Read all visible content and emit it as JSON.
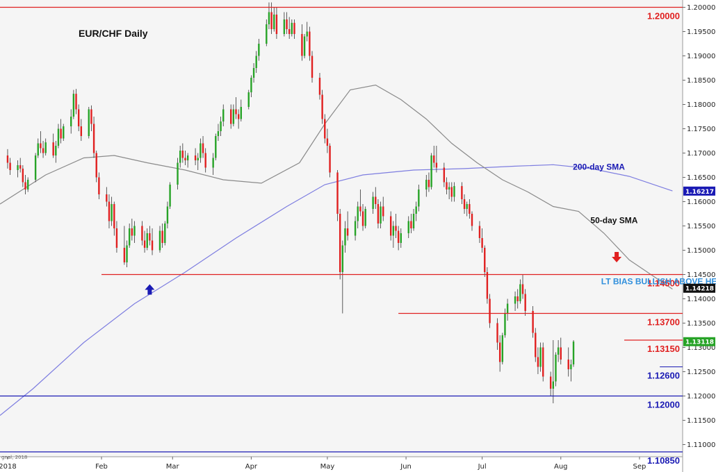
{
  "chart_data": {
    "type": "candlestick",
    "title": "EUR/CHF Daily",
    "credit": "gnal, 2018",
    "x_tick_labels": [
      "2018",
      "Feb",
      "Mar",
      "Apr",
      "May",
      "Jun",
      "Jul",
      "Aug",
      "Sep"
    ],
    "x_tick_days": [
      0,
      37,
      65,
      96,
      126,
      157,
      187,
      218,
      249
    ],
    "y_tick_labels": [
      "1.20000",
      "1.19500",
      "1.19000",
      "1.18500",
      "1.18000",
      "1.17500",
      "1.17000",
      "1.16500",
      "1.16000",
      "1.15500",
      "1.15000",
      "1.14500",
      "1.14000",
      "1.13500",
      "1.13000",
      "1.12500",
      "1.12000",
      "1.11500",
      "1.11000"
    ],
    "ylim": [
      1.1075,
      1.2015
    ],
    "grid": false,
    "colors": {
      "up": "#27a327",
      "down": "#e02020",
      "level_red": "#e02020",
      "level_blue": "#1a1ab4",
      "sma50": "#8a8a8a",
      "sma200": "#7d7de0",
      "bias_text": "#2f8fdc"
    },
    "horizontal_levels": [
      {
        "value": 1.2,
        "label": "1.20000",
        "color": "red",
        "from_day": -3
      },
      {
        "value": 1.145,
        "label": "1.14500",
        "color": "red",
        "from_day": 37
      },
      {
        "value": 1.137,
        "label": "1.13700",
        "color": "red",
        "from_day": 154
      },
      {
        "value": 1.1315,
        "label": "1.13150",
        "color": "red",
        "from_day": 243
      },
      {
        "value": 1.126,
        "label": "1.12600",
        "color": "blue",
        "from_day": 257,
        "thin": true
      },
      {
        "value": 1.12,
        "label": "1.12000",
        "color": "blue",
        "from_day": -3
      },
      {
        "value": 1.1085,
        "label": "1.10850",
        "color": "blue",
        "from_day": -3
      }
    ],
    "price_badges": [
      {
        "value": 1.16217,
        "label": "1.16217",
        "color": "#1a1ab4"
      },
      {
        "value": 1.14218,
        "label": "1.14218",
        "color": "#111111"
      },
      {
        "value": 1.13118,
        "label": "1.13118",
        "color": "#27a327"
      }
    ],
    "annotations": [
      {
        "text": "200-day SMA",
        "day": 233,
        "value": 1.1666,
        "color": "blue"
      },
      {
        "text": "50-day SMA",
        "day": 239,
        "value": 1.1556,
        "color": "dark"
      },
      {
        "text": "LT BIAS BULLISH ABOVE HERE",
        "day": 259,
        "value": 1.143,
        "color": "bias"
      }
    ],
    "arrows": [
      {
        "direction": "up",
        "day": 56,
        "value": 1.143,
        "color": "#1a1ab4"
      },
      {
        "direction": "down",
        "day": 240,
        "value": 1.1475,
        "color": "#e02020"
      }
    ],
    "sma200": [
      [
        -3,
        1.116
      ],
      [
        10,
        1.1215
      ],
      [
        30,
        1.131
      ],
      [
        50,
        1.139
      ],
      [
        70,
        1.1455
      ],
      [
        90,
        1.1525
      ],
      [
        110,
        1.159
      ],
      [
        125,
        1.1635
      ],
      [
        140,
        1.1655
      ],
      [
        160,
        1.1665
      ],
      [
        180,
        1.1668
      ],
      [
        200,
        1.1673
      ],
      [
        215,
        1.1676
      ],
      [
        230,
        1.1668
      ],
      [
        245,
        1.1652
      ],
      [
        262,
        1.1622
      ]
    ],
    "sma50": [
      [
        -3,
        1.1595
      ],
      [
        15,
        1.1655
      ],
      [
        30,
        1.169
      ],
      [
        42,
        1.1695
      ],
      [
        55,
        1.168
      ],
      [
        70,
        1.1665
      ],
      [
        85,
        1.1645
      ],
      [
        100,
        1.1638
      ],
      [
        115,
        1.168
      ],
      [
        125,
        1.176
      ],
      [
        135,
        1.183
      ],
      [
        145,
        1.184
      ],
      [
        155,
        1.181
      ],
      [
        165,
        1.177
      ],
      [
        175,
        1.172
      ],
      [
        185,
        1.168
      ],
      [
        195,
        1.1645
      ],
      [
        205,
        1.162
      ],
      [
        215,
        1.159
      ],
      [
        225,
        1.158
      ],
      [
        235,
        1.1535
      ],
      [
        245,
        1.148
      ],
      [
        262,
        1.142
      ]
    ],
    "candles": [
      [
        0,
        1.1695,
        1.1708,
        1.1668,
        1.168
      ],
      [
        1,
        1.168,
        1.169,
        1.1655,
        1.1665
      ],
      [
        4,
        1.1665,
        1.1685,
        1.165,
        1.1675
      ],
      [
        5,
        1.1675,
        1.169,
        1.166,
        1.1668
      ],
      [
        6,
        1.1668,
        1.1675,
        1.163,
        1.164
      ],
      [
        7,
        1.164,
        1.1655,
        1.1615,
        1.1625
      ],
      [
        8,
        1.1625,
        1.165,
        1.162,
        1.1645
      ],
      [
        11,
        1.1645,
        1.17,
        1.164,
        1.1695
      ],
      [
        12,
        1.1695,
        1.173,
        1.169,
        1.172
      ],
      [
        13,
        1.172,
        1.1745,
        1.17,
        1.171
      ],
      [
        14,
        1.171,
        1.1725,
        1.169,
        1.17
      ],
      [
        15,
        1.17,
        1.173,
        1.1695,
        1.1722
      ],
      [
        18,
        1.1722,
        1.174,
        1.169,
        1.1695
      ],
      [
        19,
        1.1695,
        1.1725,
        1.168,
        1.1715
      ],
      [
        20,
        1.1715,
        1.176,
        1.171,
        1.175
      ],
      [
        21,
        1.175,
        1.177,
        1.172,
        1.173
      ],
      [
        22,
        1.173,
        1.176,
        1.1725,
        1.1755
      ],
      [
        25,
        1.1755,
        1.179,
        1.174,
        1.1775
      ],
      [
        26,
        1.1775,
        1.183,
        1.177,
        1.1822
      ],
      [
        27,
        1.1822,
        1.1832,
        1.178,
        1.179
      ],
      [
        28,
        1.179,
        1.18,
        1.1745,
        1.1755
      ],
      [
        29,
        1.1755,
        1.177,
        1.1725,
        1.1735
      ],
      [
        32,
        1.1735,
        1.1795,
        1.173,
        1.179
      ],
      [
        33,
        1.179,
        1.1798,
        1.1745,
        1.176
      ],
      [
        34,
        1.176,
        1.1775,
        1.169,
        1.17
      ],
      [
        35,
        1.17,
        1.1705,
        1.164,
        1.165
      ],
      [
        36,
        1.165,
        1.166,
        1.1605,
        1.1615
      ],
      [
        39,
        1.1615,
        1.163,
        1.159,
        1.16
      ],
      [
        40,
        1.16,
        1.1615,
        1.1545,
        1.156
      ],
      [
        41,
        1.156,
        1.161,
        1.155,
        1.1595
      ],
      [
        42,
        1.1595,
        1.16,
        1.153,
        1.1545
      ],
      [
        43,
        1.1545,
        1.156,
        1.1495,
        1.1505
      ],
      [
        46,
        1.1505,
        1.155,
        1.147,
        1.1475
      ],
      [
        47,
        1.1475,
        1.152,
        1.1465,
        1.151
      ],
      [
        48,
        1.151,
        1.1555,
        1.1505,
        1.1545
      ],
      [
        49,
        1.1545,
        1.1565,
        1.152,
        1.153
      ],
      [
        50,
        1.153,
        1.156,
        1.1515,
        1.155
      ],
      [
        53,
        1.155,
        1.156,
        1.151,
        1.152
      ],
      [
        54,
        1.152,
        1.154,
        1.1495,
        1.1505
      ],
      [
        55,
        1.1505,
        1.1545,
        1.15,
        1.1535
      ],
      [
        56,
        1.1535,
        1.155,
        1.151,
        1.152
      ],
      [
        57,
        1.152,
        1.1545,
        1.149,
        1.15
      ],
      [
        60,
        1.15,
        1.155,
        1.1495,
        1.154
      ],
      [
        61,
        1.154,
        1.1555,
        1.1505,
        1.1515
      ],
      [
        62,
        1.1515,
        1.156,
        1.151,
        1.1555
      ],
      [
        63,
        1.1555,
        1.16,
        1.1545,
        1.159
      ],
      [
        64,
        1.159,
        1.164,
        1.1585,
        1.1635
      ],
      [
        67,
        1.1635,
        1.169,
        1.1625,
        1.168
      ],
      [
        68,
        1.168,
        1.1715,
        1.167,
        1.1705
      ],
      [
        69,
        1.1705,
        1.172,
        1.168,
        1.169
      ],
      [
        70,
        1.169,
        1.1705,
        1.1675,
        1.1685
      ],
      [
        71,
        1.1685,
        1.17,
        1.167,
        1.1695
      ],
      [
        74,
        1.1695,
        1.171,
        1.1675,
        1.1685
      ],
      [
        75,
        1.1685,
        1.17,
        1.1665,
        1.169
      ],
      [
        76,
        1.169,
        1.173,
        1.168,
        1.172
      ],
      [
        77,
        1.172,
        1.1735,
        1.169,
        1.17
      ],
      [
        78,
        1.17,
        1.171,
        1.166,
        1.167
      ],
      [
        81,
        1.167,
        1.17,
        1.1655,
        1.169
      ],
      [
        82,
        1.169,
        1.174,
        1.1685,
        1.1735
      ],
      [
        83,
        1.1735,
        1.176,
        1.1725,
        1.1745
      ],
      [
        84,
        1.1745,
        1.1775,
        1.1735,
        1.1765
      ],
      [
        85,
        1.1765,
        1.18,
        1.1755,
        1.179
      ],
      [
        88,
        1.179,
        1.18,
        1.175,
        1.176
      ],
      [
        89,
        1.176,
        1.18,
        1.1755,
        1.179
      ],
      [
        90,
        1.179,
        1.1815,
        1.177,
        1.178
      ],
      [
        91,
        1.178,
        1.179,
        1.175,
        1.177
      ],
      [
        92,
        1.177,
        1.181,
        1.1765,
        1.1795
      ],
      [
        95,
        1.1795,
        1.183,
        1.179,
        1.1825
      ],
      [
        96,
        1.1825,
        1.186,
        1.1815,
        1.1855
      ],
      [
        97,
        1.1855,
        1.1885,
        1.1845,
        1.1875
      ],
      [
        98,
        1.1875,
        1.191,
        1.1865,
        1.19
      ],
      [
        99,
        1.19,
        1.1935,
        1.189,
        1.1925
      ],
      [
        102,
        1.1925,
        1.1975,
        1.192,
        1.1965
      ],
      [
        103,
        1.1965,
        1.201,
        1.1955,
        1.199
      ],
      [
        104,
        1.199,
        1.201,
        1.1945,
        1.1955
      ],
      [
        105,
        1.1955,
        1.2,
        1.195,
        1.1985
      ],
      [
        106,
        1.1985,
        1.2,
        1.1935,
        1.1945
      ],
      [
        109,
        1.1945,
        1.199,
        1.194,
        1.1975
      ],
      [
        110,
        1.1975,
        1.199,
        1.1945,
        1.1955
      ],
      [
        111,
        1.1955,
        1.198,
        1.1935,
        1.1945
      ],
      [
        112,
        1.1945,
        1.1975,
        1.194,
        1.1968
      ],
      [
        113,
        1.1968,
        1.1975,
        1.1935,
        1.1945
      ],
      [
        116,
        1.1945,
        1.1965,
        1.189,
        1.19
      ],
      [
        117,
        1.19,
        1.1945,
        1.1895,
        1.194
      ],
      [
        118,
        1.194,
        1.197,
        1.193,
        1.195
      ],
      [
        119,
        1.195,
        1.196,
        1.189,
        1.19
      ],
      [
        120,
        1.19,
        1.191,
        1.1845,
        1.1855
      ],
      [
        123,
        1.1855,
        1.1865,
        1.181,
        1.182
      ],
      [
        124,
        1.182,
        1.183,
        1.176,
        1.177
      ],
      [
        125,
        1.177,
        1.178,
        1.172,
        1.173
      ],
      [
        126,
        1.173,
        1.175,
        1.17,
        1.1715
      ],
      [
        127,
        1.1715,
        1.172,
        1.165,
        1.166
      ],
      [
        130,
        1.166,
        1.1665,
        1.156,
        1.1575
      ],
      [
        131,
        1.1575,
        1.1585,
        1.144,
        1.1455
      ],
      [
        132,
        1.1455,
        1.152,
        1.137,
        1.151
      ],
      [
        133,
        1.151,
        1.156,
        1.1495,
        1.1545
      ],
      [
        134,
        1.1545,
        1.158,
        1.152,
        1.153
      ],
      [
        137,
        1.153,
        1.157,
        1.152,
        1.156
      ],
      [
        138,
        1.156,
        1.16,
        1.1545,
        1.159
      ],
      [
        139,
        1.159,
        1.1625,
        1.157,
        1.158
      ],
      [
        140,
        1.158,
        1.1595,
        1.154,
        1.155
      ],
      [
        141,
        1.155,
        1.159,
        1.1545,
        1.1585
      ],
      [
        144,
        1.1585,
        1.162,
        1.1575,
        1.161
      ],
      [
        145,
        1.161,
        1.163,
        1.1585,
        1.1595
      ],
      [
        146,
        1.1595,
        1.1605,
        1.1545,
        1.1555
      ],
      [
        147,
        1.1555,
        1.16,
        1.1545,
        1.159
      ],
      [
        148,
        1.159,
        1.161,
        1.156,
        1.157
      ],
      [
        151,
        1.157,
        1.158,
        1.152,
        1.153
      ],
      [
        152,
        1.153,
        1.156,
        1.1505,
        1.155
      ],
      [
        153,
        1.155,
        1.1575,
        1.1525,
        1.154
      ],
      [
        154,
        1.154,
        1.155,
        1.15,
        1.1515
      ],
      [
        155,
        1.1515,
        1.1545,
        1.1505,
        1.1535
      ],
      [
        158,
        1.1535,
        1.157,
        1.1525,
        1.156
      ],
      [
        159,
        1.156,
        1.1575,
        1.1535,
        1.1545
      ],
      [
        160,
        1.1545,
        1.1585,
        1.154,
        1.1575
      ],
      [
        161,
        1.1575,
        1.16,
        1.156,
        1.159
      ],
      [
        162,
        1.159,
        1.1635,
        1.158,
        1.1625
      ],
      [
        165,
        1.1625,
        1.1655,
        1.161,
        1.1645
      ],
      [
        166,
        1.1645,
        1.166,
        1.162,
        1.163
      ],
      [
        167,
        1.163,
        1.17,
        1.1625,
        1.1695
      ],
      [
        168,
        1.1695,
        1.1715,
        1.167,
        1.168
      ],
      [
        169,
        1.168,
        1.1715,
        1.166,
        1.167
      ],
      [
        172,
        1.167,
        1.168,
        1.163,
        1.164
      ],
      [
        173,
        1.164,
        1.165,
        1.1615,
        1.1625
      ],
      [
        174,
        1.1625,
        1.164,
        1.1605,
        1.163
      ],
      [
        175,
        1.163,
        1.164,
        1.16,
        1.161
      ],
      [
        176,
        1.161,
        1.164,
        1.16,
        1.1632
      ],
      [
        179,
        1.1632,
        1.164,
        1.1595,
        1.1605
      ],
      [
        180,
        1.1605,
        1.1615,
        1.1575,
        1.1585
      ],
      [
        181,
        1.1585,
        1.16,
        1.157,
        1.1595
      ],
      [
        182,
        1.1595,
        1.1605,
        1.1565,
        1.1575
      ],
      [
        183,
        1.1575,
        1.158,
        1.154,
        1.155
      ],
      [
        186,
        1.155,
        1.156,
        1.1515,
        1.1525
      ],
      [
        187,
        1.1525,
        1.1545,
        1.1495,
        1.1505
      ],
      [
        188,
        1.1505,
        1.151,
        1.1445,
        1.1455
      ],
      [
        189,
        1.1455,
        1.1465,
        1.139,
        1.14
      ],
      [
        190,
        1.14,
        1.141,
        1.134,
        1.135
      ],
      [
        193,
        1.135,
        1.136,
        1.1295,
        1.131
      ],
      [
        194,
        1.131,
        1.1325,
        1.125,
        1.127
      ],
      [
        195,
        1.127,
        1.133,
        1.1265,
        1.1325
      ],
      [
        196,
        1.1325,
        1.138,
        1.132,
        1.137
      ],
      [
        197,
        1.137,
        1.14,
        1.1355,
        1.139
      ],
      [
        200,
        1.139,
        1.1415,
        1.1375,
        1.1405
      ],
      [
        201,
        1.1405,
        1.142,
        1.138,
        1.1395
      ],
      [
        202,
        1.1395,
        1.144,
        1.139,
        1.143
      ],
      [
        203,
        1.143,
        1.145,
        1.14,
        1.141
      ],
      [
        204,
        1.141,
        1.142,
        1.1365,
        1.1375
      ],
      [
        207,
        1.1375,
        1.1385,
        1.132,
        1.133
      ],
      [
        208,
        1.133,
        1.134,
        1.127,
        1.128
      ],
      [
        209,
        1.128,
        1.13,
        1.1245,
        1.126
      ],
      [
        210,
        1.126,
        1.131,
        1.125,
        1.13
      ],
      [
        211,
        1.13,
        1.131,
        1.123,
        1.124
      ],
      [
        214,
        1.124,
        1.125,
        1.12,
        1.1215
      ],
      [
        215,
        1.1215,
        1.1315,
        1.1185,
        1.123
      ],
      [
        216,
        1.123,
        1.129,
        1.122,
        1.1285
      ],
      [
        217,
        1.1285,
        1.1315,
        1.127,
        1.13
      ],
      [
        218,
        1.13,
        1.132,
        1.1265,
        1.1275
      ],
      [
        221,
        1.1275,
        1.13,
        1.124,
        1.1255
      ],
      [
        222,
        1.1255,
        1.1275,
        1.123,
        1.1265
      ],
      [
        223,
        1.1265,
        1.1315,
        1.126,
        1.1312
      ]
    ]
  }
}
